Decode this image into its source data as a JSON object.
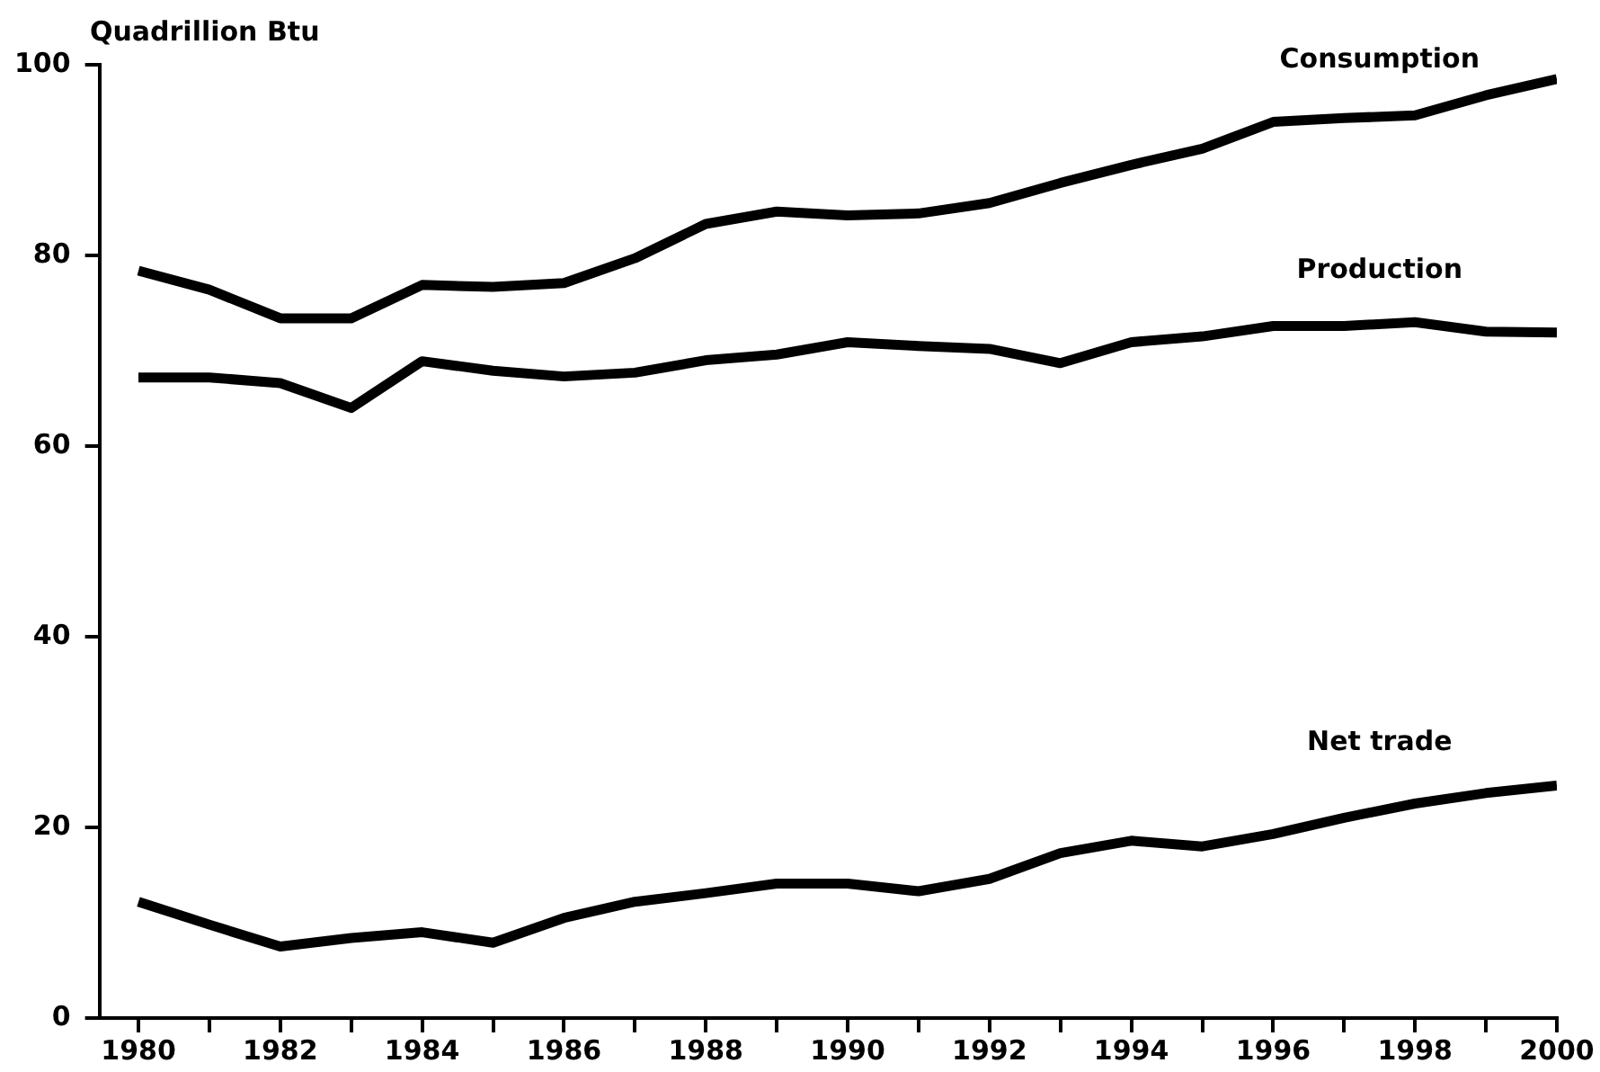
{
  "chart_data": {
    "type": "line",
    "ylabel": "Quadrillion Btu",
    "x": [
      1980,
      1981,
      1982,
      1983,
      1984,
      1985,
      1986,
      1987,
      1988,
      1989,
      1990,
      1991,
      1992,
      1993,
      1994,
      1995,
      1996,
      1997,
      1998,
      1999,
      2000
    ],
    "series": [
      {
        "name": "Consumption",
        "color": "#000000",
        "values": [
          78.4,
          76.4,
          73.4,
          73.4,
          76.9,
          76.7,
          77.1,
          79.7,
          83.3,
          84.6,
          84.2,
          84.4,
          85.5,
          87.6,
          89.5,
          91.2,
          94.0,
          94.4,
          94.7,
          96.8,
          98.5
        ]
      },
      {
        "name": "Production",
        "color": "#000000",
        "values": [
          67.2,
          67.2,
          66.6,
          64.0,
          68.9,
          67.9,
          67.3,
          67.7,
          69.0,
          69.6,
          70.9,
          70.5,
          70.2,
          68.7,
          70.9,
          71.5,
          72.6,
          72.6,
          73.0,
          72.0,
          71.9
        ]
      },
      {
        "name": "Net trade",
        "color": "#000000",
        "values": [
          12.2,
          9.8,
          7.5,
          8.4,
          9.0,
          7.9,
          10.5,
          12.2,
          13.1,
          14.1,
          14.1,
          13.3,
          14.6,
          17.3,
          18.6,
          18.0,
          19.3,
          21.0,
          22.5,
          23.6,
          24.4
        ]
      }
    ],
    "xlim": [
      1979.45,
      2000
    ],
    "xticks": [
      1980,
      {
        "value": 1981,
        "label": null
      },
      1982,
      {
        "value": 1983,
        "label": null
      },
      1984,
      {
        "value": 1985,
        "label": null
      },
      1986,
      {
        "value": 1987,
        "label": null
      },
      1988,
      {
        "value": 1989,
        "label": null
      },
      1990,
      {
        "value": 1991,
        "label": null
      },
      1992,
      {
        "value": 1993,
        "label": null
      },
      1994,
      {
        "value": 1995,
        "label": null
      },
      1996,
      {
        "value": 1997,
        "label": null
      },
      1998,
      {
        "value": 1999,
        "label": null
      },
      2000
    ],
    "ylim": [
      0,
      100
    ],
    "yticks": [
      0,
      20,
      40,
      60,
      80,
      100
    ],
    "grid": false,
    "legend": false,
    "marker": "none",
    "line_style": "solid"
  }
}
